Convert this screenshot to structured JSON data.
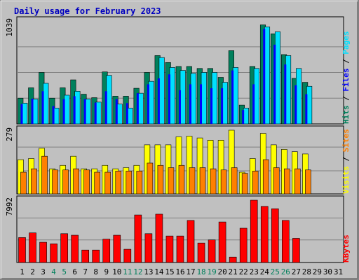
{
  "chart_data": {
    "type": "bar",
    "title": "Daily usage for February 2023",
    "days": [
      "1",
      "2",
      "3",
      "4",
      "5",
      "6",
      "7",
      "8",
      "9",
      "10",
      "11",
      "12",
      "13",
      "14",
      "15",
      "16",
      "17",
      "18",
      "19",
      "20",
      "21",
      "22",
      "23",
      "24",
      "25",
      "26",
      "27",
      "28",
      "29",
      "30",
      "31"
    ],
    "weekend_days": [
      4,
      5,
      11,
      12,
      18,
      19,
      25,
      26
    ],
    "colors": {
      "title": "#0000c0",
      "hits": "#00805c",
      "files": "#0000ff",
      "pages": "#00e0ff",
      "sites": "#ff8000",
      "visits": "#ffff00",
      "kbytes": "#ff0000",
      "weekend_label": "#00805c",
      "weekday_label": "#000000",
      "background": "#c0c0c0",
      "grid": "#808080"
    },
    "panels": [
      {
        "id": "hits",
        "max_label": "1039",
        "ymax": 1039,
        "legend": [
          {
            "text": "Hits",
            "color": "#00805c"
          },
          {
            "text": "Files",
            "color": "#0000ff"
          },
          {
            "text": "Pages",
            "color": "#00e0ff"
          }
        ],
        "series": [
          {
            "name": "Hits",
            "color": "#00805c",
            "values": [
              260,
              365,
              520,
              260,
              365,
              445,
              300,
              265,
              525,
              280,
              280,
              360,
              520,
              690,
              620,
              580,
              580,
              560,
              560,
              470,
              740,
              190,
              580,
              1000,
              910,
              700,
              460,
              420,
              0,
              0,
              0
            ]
          },
          {
            "name": "Files",
            "color": "#0000ff",
            "values": [
              200,
              255,
              330,
              180,
              250,
              280,
              250,
              215,
              330,
              250,
              210,
              310,
              400,
              460,
              500,
              340,
              400,
              400,
              360,
              360,
              540,
              140,
              400,
              960,
              800,
              600,
              390,
              300,
              0,
              0,
              0
            ]
          },
          {
            "name": "Pages",
            "color": "#00e0ff",
            "values": [
              210,
              250,
              410,
              160,
              290,
              330,
              250,
              220,
              490,
              200,
              160,
              310,
              430,
              670,
              570,
              540,
              510,
              520,
              520,
              420,
              570,
              160,
              560,
              980,
              930,
              690,
              560,
              380,
              0,
              0,
              0
            ]
          }
        ]
      },
      {
        "id": "visits",
        "max_label": "279",
        "ymax": 279,
        "legend": [
          {
            "text": "Visits",
            "color": "#ffff00"
          },
          {
            "text": "Sites",
            "color": "#ff8000"
          }
        ],
        "series": [
          {
            "name": "Visits",
            "color": "#ffff00",
            "values": [
              150,
              155,
              200,
              110,
              125,
              165,
              110,
              110,
              125,
              110,
              115,
              125,
              215,
              215,
              215,
              250,
              253,
              245,
              235,
              235,
              279,
              95,
              155,
              265,
              215,
              195,
              185,
              175,
              0,
              0,
              0
            ]
          },
          {
            "name": "Sites",
            "color": "#ff8000",
            "values": [
              95,
              110,
              165,
              105,
              105,
              110,
              105,
              95,
              95,
              100,
              100,
              100,
              135,
              125,
              115,
              125,
              115,
              115,
              110,
              105,
              115,
              90,
              100,
              150,
              115,
              110,
              110,
              105,
              0,
              0,
              0
            ]
          }
        ]
      },
      {
        "id": "kbytes",
        "max_label": "7992",
        "ymax": 7992,
        "legend": [
          {
            "text": "KBytes",
            "color": "#ff0000"
          }
        ],
        "series": [
          {
            "name": "KBytes",
            "color": "#ff0000",
            "values": [
              3200,
              3800,
              2600,
              2400,
              3700,
              3500,
              1600,
              1600,
              3000,
              3500,
              1700,
              6100,
              3700,
              6200,
              3400,
              3400,
              5400,
              2500,
              2900,
              5200,
              700,
              4400,
              7992,
              7200,
              6900,
              5400,
              3100,
              0,
              0,
              0,
              0
            ]
          }
        ]
      }
    ]
  }
}
